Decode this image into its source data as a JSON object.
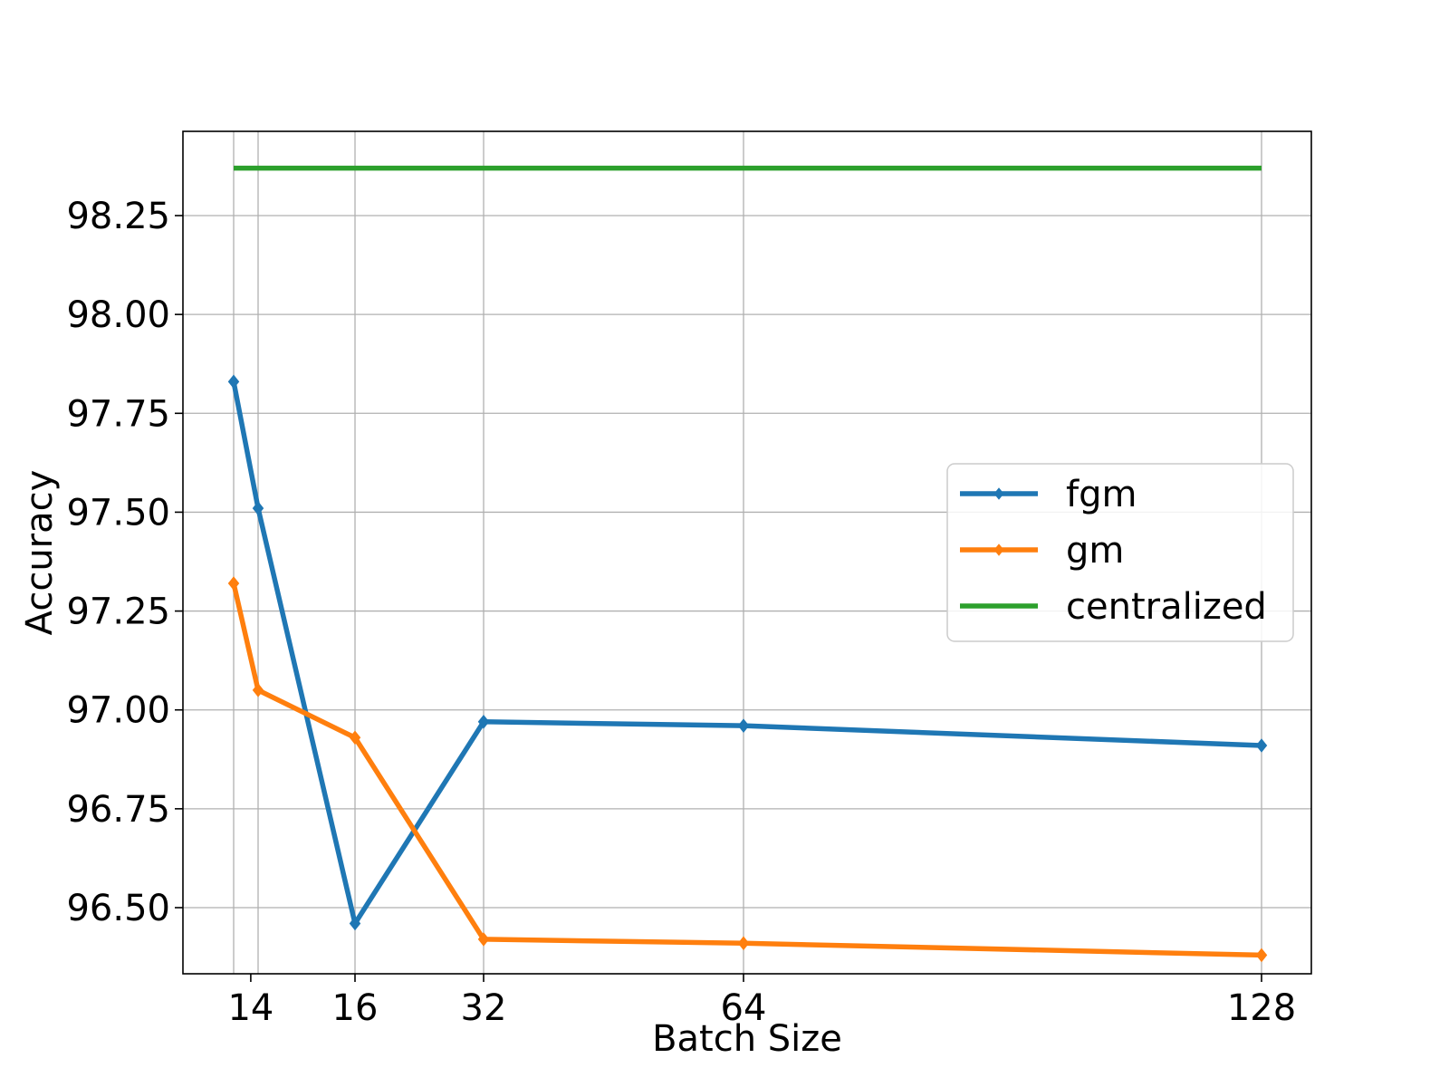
{
  "chart_data": {
    "type": "line",
    "title": "",
    "xlabel": "Batch Size",
    "ylabel": "Accuracy",
    "x_ticks": [
      "14",
      "16",
      "32",
      "64",
      "128"
    ],
    "y_ticks": [
      "96.50",
      "96.75",
      "97.00",
      "97.25",
      "97.50",
      "97.75",
      "98.00",
      "98.25"
    ],
    "ylim": [
      96.28,
      98.47
    ],
    "grid": true,
    "legend_position": "center-right",
    "series": [
      {
        "name": "fgm",
        "color": "#1f77b4",
        "marker": "diamond",
        "points": [
          {
            "x": 8,
            "y": 97.83
          },
          {
            "x": 10,
            "y": 97.51
          },
          {
            "x": 16,
            "y": 96.46
          },
          {
            "x": 32,
            "y": 96.97
          },
          {
            "x": 64,
            "y": 96.96
          },
          {
            "x": 128,
            "y": 96.91
          }
        ]
      },
      {
        "name": "gm",
        "color": "#ff7f0e",
        "marker": "diamond",
        "points": [
          {
            "x": 8,
            "y": 97.32
          },
          {
            "x": 10,
            "y": 97.05
          },
          {
            "x": 16,
            "y": 96.93
          },
          {
            "x": 32,
            "y": 96.42
          },
          {
            "x": 64,
            "y": 96.41
          },
          {
            "x": 128,
            "y": 96.38
          }
        ]
      },
      {
        "name": "centralized",
        "color": "#2ca02c",
        "marker": "none",
        "points": [
          {
            "x": 8,
            "y": 98.37
          },
          {
            "x": 128,
            "y": 98.37
          }
        ]
      }
    ]
  }
}
